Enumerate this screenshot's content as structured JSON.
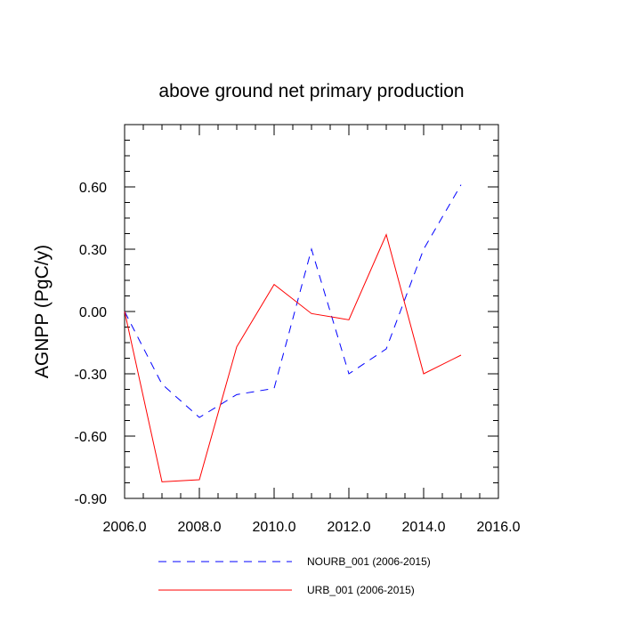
{
  "chart_data": {
    "type": "line",
    "title": "above ground net primary production",
    "ylabel": "AGNPP  (PgC/y)",
    "xlabel": "",
    "xlim": [
      2006.0,
      2016.0
    ],
    "ylim": [
      -0.9,
      0.9
    ],
    "x_ticks": [
      "2006.0",
      "2008.0",
      "2010.0",
      "2012.0",
      "2014.0",
      "2016.0"
    ],
    "y_ticks": [
      "-0.90",
      "-0.60",
      "-0.30",
      "0.00",
      "0.30",
      "0.60"
    ],
    "x": [
      2006,
      2007,
      2008,
      2009,
      2010,
      2011,
      2012,
      2013,
      2014,
      2015
    ],
    "series": [
      {
        "name": "NOURB_001 (2006-2015)",
        "color": "#0000ff",
        "dash": true,
        "values": [
          0.0,
          -0.35,
          -0.51,
          -0.4,
          -0.37,
          0.3,
          -0.3,
          -0.18,
          0.3,
          0.61
        ]
      },
      {
        "name": "URB_001 (2006-2015)",
        "color": "#ff0000",
        "dash": false,
        "values": [
          0.0,
          -0.82,
          -0.81,
          -0.17,
          0.13,
          -0.01,
          -0.04,
          0.37,
          -0.3,
          -0.21
        ]
      }
    ],
    "grid": false,
    "legend_position": "bottom"
  }
}
